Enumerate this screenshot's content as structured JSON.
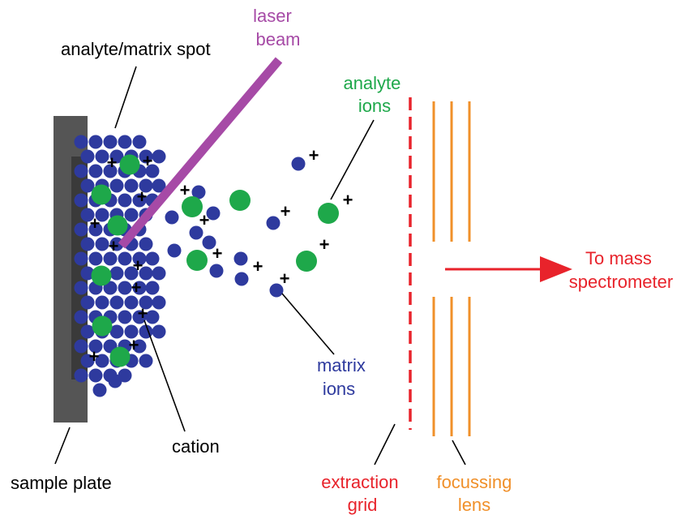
{
  "labels": {
    "laser": [
      "laser",
      "beam"
    ],
    "spot": "analyte/matrix spot",
    "analyte_ions": [
      "analyte",
      "ions"
    ],
    "matrix_ions": [
      "matrix",
      "ions"
    ],
    "cation": "cation",
    "sample_plate": "sample plate",
    "extraction_grid": [
      "extraction",
      "grid"
    ],
    "focussing_lens": [
      "focussing",
      "lens"
    ],
    "to_mass": [
      "To mass",
      "spectrometer"
    ]
  },
  "ion_charge_symbol": "+",
  "colors": {
    "matrix": "#2e3a9e",
    "analyte": "#1ea84a",
    "laser": "#a64aa6",
    "plate": "#555555",
    "grid": "#e8232b",
    "lens": "#f0902a",
    "arrow": "#e8232b",
    "matrix_label": "#2e3a9e",
    "analyte_label": "#1ea84a",
    "laser_label": "#a64aa6",
    "text": "#000000"
  }
}
